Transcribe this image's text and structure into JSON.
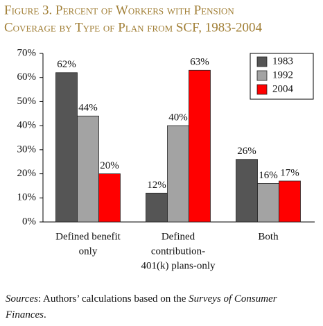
{
  "chart_data": {
    "type": "bar",
    "title": [
      "Figure 3. Percent of Workers with Pension",
      "Coverage by Type of Plan from SCF, 1983-2004"
    ],
    "categories": [
      [
        "Defined benefit",
        "only"
      ],
      [
        "Defined",
        "contribution-",
        "401(k) plans-only"
      ],
      [
        "Both"
      ]
    ],
    "series": [
      {
        "name": "1983",
        "color": "#555555",
        "values": [
          62,
          12,
          26
        ],
        "value_labels": [
          "62%",
          "12%",
          "26%"
        ]
      },
      {
        "name": "1992",
        "color": "#a3a3a3",
        "values": [
          44,
          40,
          16
        ],
        "value_labels": [
          "44%",
          "40%",
          "16%"
        ]
      },
      {
        "name": "2004",
        "color": "#ff0000",
        "values": [
          20,
          63,
          17
        ],
        "value_labels": [
          "20%",
          "63%",
          "17%"
        ]
      }
    ],
    "ylim": [
      0,
      70
    ],
    "yticks": [
      {
        "value": 0,
        "label": "0%"
      },
      {
        "value": 10,
        "label": "10%"
      },
      {
        "value": 20,
        "label": "20%"
      },
      {
        "value": 30,
        "label": "30%"
      },
      {
        "value": 40,
        "label": "40%"
      },
      {
        "value": 50,
        "label": "50%"
      },
      {
        "value": 60,
        "label": "60%"
      },
      {
        "value": 70,
        "label": "70%"
      }
    ],
    "grid": false,
    "legend": "top-right",
    "source": [
      "Sources",
      ": Authors’ calculations based on the ",
      "Surveys of Consumer Finances",
      "."
    ]
  }
}
